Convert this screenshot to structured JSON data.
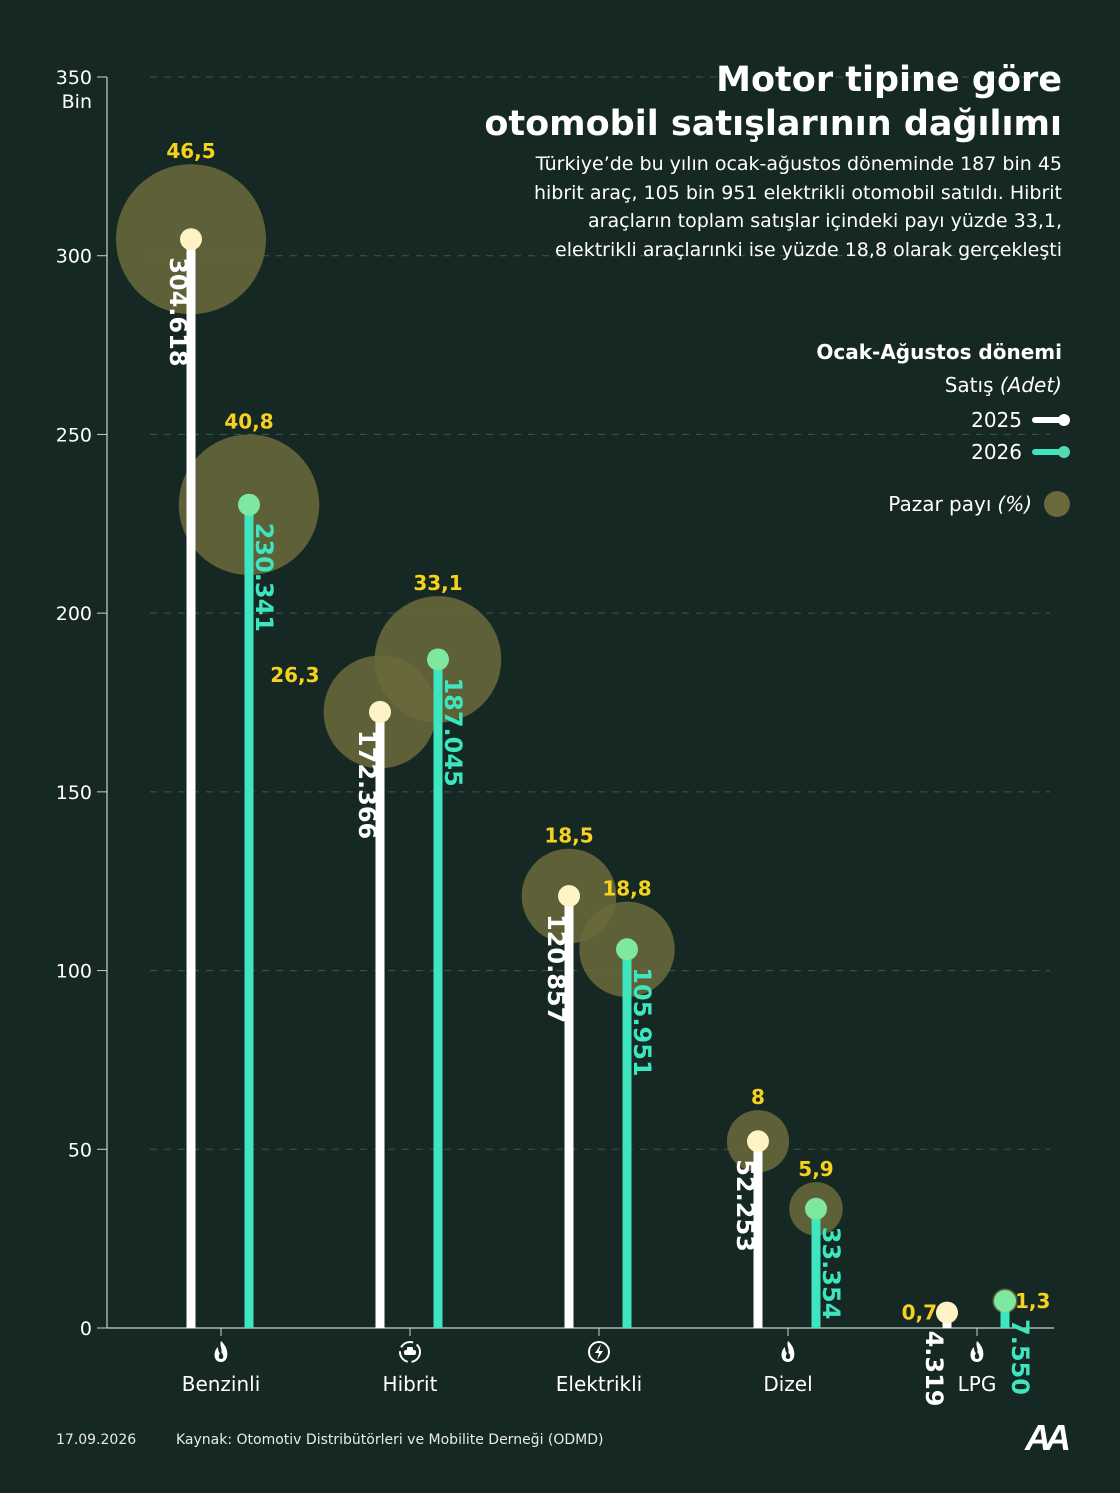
{
  "header": {
    "title_line1": "Motor tipine göre",
    "title_line2": "otomobil satışlarının dağılımı",
    "subtitle": "Türkiye’de bu yılın ocak-ağustos döneminde 187 bin 45 hibrit araç, 105 bin 951 elektrikli otomobil satıldı. Hibrit araçların toplam satışlar içindeki payı yüzde 33,1, elektrikli araçlarınki ise yüzde 18,8 olarak gerçekleşti"
  },
  "legend": {
    "title": "Ocak-Ağustos dönemi",
    "unit_label": "Satış",
    "unit_paren": "(Adet)",
    "series": [
      {
        "label": "2025",
        "color": "#ffffff",
        "dot_color": "#ffffff"
      },
      {
        "label": "2026",
        "color": "#3ee6c0",
        "dot_color": "#53d9b0"
      }
    ],
    "share_label": "Pazar payı",
    "share_paren": "(%)"
  },
  "chart_data": {
    "type": "lollipop",
    "categories": [
      "Benzinli",
      "Hibrit",
      "Elektrikli",
      "Dizel",
      "LPG"
    ],
    "category_icons": [
      "flame-icon",
      "hybrid-car-icon",
      "lightning-icon",
      "flame-icon",
      "flame-icon"
    ],
    "series": [
      {
        "name": "2025",
        "values": [
          304618,
          172366,
          120857,
          52253,
          4319
        ],
        "labels": [
          "304.618",
          "172.366",
          "120.857",
          "52.253",
          "4.319"
        ],
        "market_share": [
          "46,5",
          "26,3",
          "18,5",
          "8",
          "0,7"
        ],
        "share_values": [
          46.5,
          26.3,
          18.5,
          8,
          0.7
        ]
      },
      {
        "name": "2026",
        "values": [
          230341,
          187045,
          105951,
          33354,
          7550
        ],
        "labels": [
          "230.341",
          "187.045",
          "105.951",
          "33.354",
          "7.550"
        ],
        "market_share": [
          "40,8",
          "33,1",
          "18,8",
          "5,9",
          "1,3"
        ],
        "share_values": [
          40.8,
          33.1,
          18.8,
          5.9,
          1.3
        ]
      }
    ],
    "ylabel": "Bin",
    "y_ticks": [
      0,
      50,
      100,
      150,
      200,
      250,
      300,
      350
    ],
    "ylim": [
      0,
      350
    ],
    "grid": true,
    "colors": {
      "bar_2025": "#ffffff",
      "dot_2025": "#fdf3c4",
      "bar_2026": "#3ee6c0",
      "dot_2026": "#7fe8a0",
      "share_bubble": "#6b6a3c",
      "share_label": "#f5d21e",
      "background": "#162824"
    }
  },
  "footer": {
    "date": "17.09.2026",
    "source": "Kaynak: Otomotiv Distribütörleri ve Mobilite Derneği (ODMD)",
    "logo_text": "AA"
  }
}
